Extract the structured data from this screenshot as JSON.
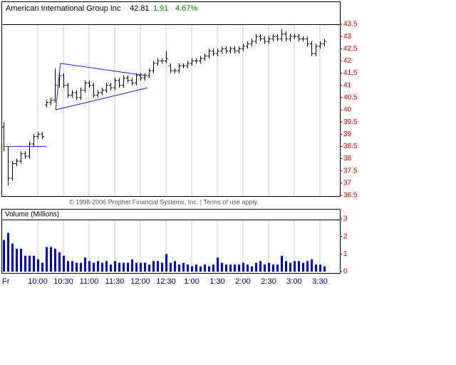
{
  "header": {
    "title": "American International Group Inc",
    "last": 42.81,
    "change": 1.91,
    "change_pct": {
      "value": 4.67,
      "label": "4.67%"
    }
  },
  "copyright": "© 1998-2006 Prophet Financial Systems, Inc. | Terms of use apply.",
  "chart_data": [
    {
      "type": "ohlc",
      "color": "#000000",
      "open": [
        39.3,
        38.5,
        37.2,
        37.8,
        37.9,
        38.2,
        38.1,
        38.6,
        38.9,
        39.0,
        40.2,
        40.3,
        40.4,
        41.0,
        41.4,
        41.0,
        40.6,
        40.7,
        40.5,
        40.8,
        41.1,
        41.0,
        40.6,
        40.7,
        40.8,
        41.0,
        40.9,
        41.2,
        41.0,
        41.3,
        41.2,
        41.1,
        41.4,
        41.3,
        41.4,
        41.6,
        41.9,
        42.0,
        42.0,
        41.8,
        41.6,
        41.6,
        41.8,
        41.8,
        41.9,
        42.0,
        42.0,
        42.1,
        42.2,
        42.4,
        42.3,
        42.4,
        42.5,
        42.4,
        42.5,
        42.4,
        42.5,
        42.6,
        42.7,
        42.8,
        43.0,
        42.9,
        42.8,
        42.9,
        43.0,
        42.9,
        43.1,
        42.9,
        43.0,
        43.0,
        42.9,
        42.9,
        42.7,
        42.3,
        42.6,
        42.7
      ],
      "high": [
        39.5,
        38.5,
        37.9,
        38.0,
        38.3,
        38.3,
        38.7,
        39.0,
        39.1,
        39.1,
        40.4,
        40.5,
        41.7,
        41.6,
        41.5,
        41.1,
        40.8,
        40.8,
        40.9,
        41.2,
        41.2,
        41.1,
        40.8,
        40.9,
        41.1,
        41.1,
        41.3,
        41.3,
        41.4,
        41.4,
        41.3,
        41.5,
        41.5,
        41.5,
        41.7,
        42.0,
        42.1,
        42.1,
        42.4,
        41.9,
        41.7,
        41.9,
        41.9,
        42.0,
        42.1,
        42.1,
        42.2,
        42.3,
        42.5,
        42.5,
        42.5,
        42.6,
        42.6,
        42.6,
        42.6,
        42.6,
        42.7,
        42.8,
        42.9,
        43.1,
        43.1,
        43.0,
        43.0,
        43.1,
        43.1,
        43.3,
        43.2,
        43.1,
        43.1,
        43.1,
        43.0,
        43.0,
        42.8,
        42.7,
        42.8,
        42.9
      ],
      "low": [
        38.3,
        36.9,
        37.1,
        37.7,
        37.8,
        38.0,
        38.0,
        38.5,
        38.8,
        38.8,
        40.1,
        40.2,
        40.3,
        40.9,
        40.9,
        40.5,
        40.5,
        40.4,
        40.4,
        40.7,
        40.9,
        40.5,
        40.5,
        40.6,
        40.7,
        40.8,
        40.8,
        40.9,
        40.9,
        41.1,
        41.0,
        41.0,
        41.2,
        41.2,
        41.3,
        41.5,
        41.8,
        41.9,
        41.9,
        41.5,
        41.5,
        41.5,
        41.7,
        41.7,
        41.8,
        41.9,
        41.9,
        42.0,
        42.1,
        42.2,
        42.2,
        42.3,
        42.3,
        42.3,
        42.3,
        42.3,
        42.4,
        42.5,
        42.6,
        42.7,
        42.8,
        42.7,
        42.7,
        42.8,
        42.8,
        42.8,
        42.8,
        42.8,
        42.9,
        42.8,
        42.8,
        42.6,
        42.2,
        42.2,
        42.5,
        42.6
      ],
      "close": [
        38.5,
        37.2,
        37.8,
        37.9,
        38.2,
        38.1,
        38.6,
        38.9,
        39.0,
        38.9,
        40.3,
        40.4,
        41.0,
        41.4,
        41.0,
        40.6,
        40.7,
        40.5,
        40.8,
        41.1,
        41.0,
        40.6,
        40.7,
        40.8,
        41.0,
        40.9,
        41.2,
        41.0,
        41.3,
        41.2,
        41.1,
        41.4,
        41.3,
        41.4,
        41.6,
        41.9,
        42.0,
        42.0,
        42.1,
        41.6,
        41.6,
        41.8,
        41.8,
        41.9,
        42.0,
        42.0,
        42.1,
        42.2,
        42.4,
        42.3,
        42.4,
        42.5,
        42.4,
        42.5,
        42.4,
        42.5,
        42.6,
        42.7,
        42.8,
        43.0,
        42.9,
        42.8,
        42.9,
        43.0,
        42.9,
        43.1,
        42.9,
        43.0,
        43.0,
        42.9,
        42.9,
        42.7,
        42.3,
        42.6,
        42.7,
        42.8
      ],
      "ylim": [
        36.5,
        43.5
      ],
      "yticks": [
        36.5,
        37,
        37.5,
        38,
        38.5,
        39,
        39.5,
        40,
        40.5,
        41,
        41.5,
        42,
        42.5,
        43,
        43.5
      ],
      "trendline_color": "#1a1acc",
      "trendlines": [
        {
          "x": [
            1.2,
            10
          ],
          "y": [
            38.5,
            38.5
          ]
        },
        {
          "x": [
            13.3,
            33.3
          ],
          "y": [
            41.9,
            41.4
          ]
        },
        {
          "x": [
            12.2,
            33.7
          ],
          "y": [
            40.0,
            40.9
          ]
        },
        {
          "x": [
            13.3,
            12.2
          ],
          "y": [
            41.9,
            40.0
          ]
        }
      ]
    },
    {
      "type": "bar",
      "title": "Volume (Millions)",
      "color": "#0000cc",
      "categories": [
        "Fr",
        null,
        null,
        null,
        null,
        null,
        null,
        null,
        "10:00",
        null,
        null,
        null,
        null,
        null,
        "10:30",
        null,
        null,
        null,
        null,
        null,
        "11:00",
        null,
        null,
        null,
        null,
        null,
        "11:30",
        null,
        null,
        null,
        null,
        null,
        "12:00",
        null,
        null,
        null,
        null,
        null,
        "12:30",
        null,
        null,
        null,
        null,
        null,
        "1:00",
        null,
        null,
        null,
        null,
        null,
        "1:30",
        null,
        null,
        null,
        null,
        null,
        "2:00",
        null,
        null,
        null,
        null,
        null,
        "2:30",
        null,
        null,
        null,
        null,
        null,
        "3:00",
        null,
        null,
        null,
        null,
        null,
        "3:30",
        null
      ],
      "values": [
        1.8,
        2.2,
        1.6,
        1.3,
        1.3,
        0.9,
        0.9,
        0.9,
        0.7,
        0.5,
        1.4,
        1.4,
        1.3,
        1.1,
        0.9,
        0.6,
        0.6,
        0.5,
        0.5,
        0.8,
        0.6,
        0.5,
        0.6,
        0.5,
        0.6,
        0.4,
        0.6,
        0.5,
        0.5,
        0.5,
        0.7,
        0.5,
        0.5,
        0.5,
        0.4,
        0.6,
        0.6,
        0.5,
        1.0,
        0.5,
        0.6,
        0.4,
        0.5,
        0.4,
        0.3,
        0.4,
        0.3,
        0.4,
        0.3,
        0.4,
        0.8,
        0.5,
        0.4,
        0.4,
        0.4,
        0.4,
        0.5,
        0.4,
        0.3,
        0.5,
        0.6,
        0.4,
        0.5,
        0.4,
        0.4,
        0.9,
        0.6,
        0.5,
        0.6,
        0.6,
        0.5,
        0.6,
        0.7,
        0.4,
        0.4,
        0.3
      ],
      "ylim": [
        0,
        3
      ],
      "yticks": [
        0,
        1,
        2,
        3
      ]
    }
  ]
}
